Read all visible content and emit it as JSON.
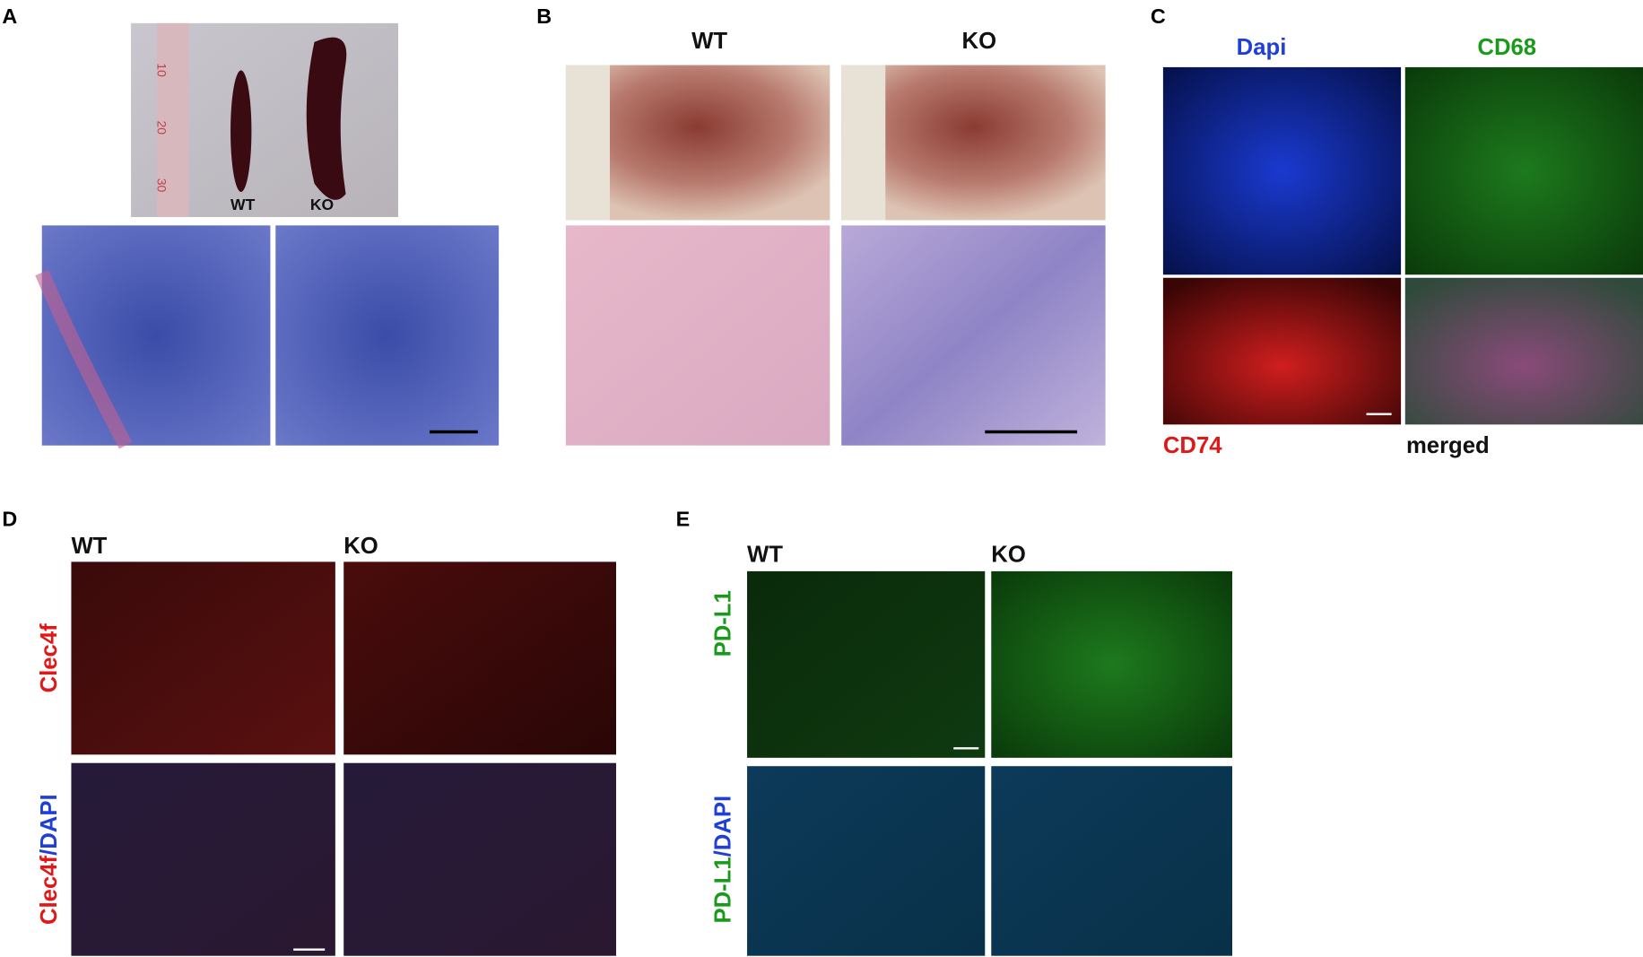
{
  "panels": {
    "A": {
      "label": "A",
      "photo_labels": [
        "WT",
        "KO"
      ],
      "ruler_numbers": [
        "10",
        "20",
        "30"
      ]
    },
    "B": {
      "label": "B",
      "column_labels": [
        "WT",
        "KO"
      ]
    },
    "C": {
      "label": "C",
      "channels": [
        "Dapi",
        "CD68",
        "CD74",
        "merged"
      ]
    },
    "D": {
      "label": "D",
      "column_labels": [
        "WT",
        "KO"
      ],
      "row_labels": [
        [
          "Clec4f"
        ],
        [
          "Clec4f",
          "/DAPI"
        ]
      ]
    },
    "E": {
      "label": "E",
      "column_labels": [
        "WT",
        "KO"
      ],
      "row_labels": [
        [
          "PD-L1"
        ],
        [
          "PD-L1",
          "/DAPI"
        ]
      ]
    }
  }
}
